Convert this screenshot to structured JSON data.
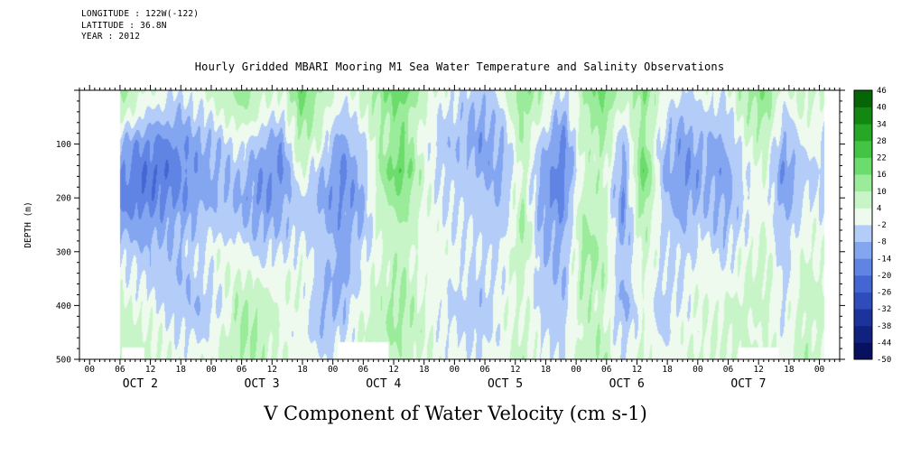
{
  "header": {
    "longitude": "LONGITUDE : 122W(-122)",
    "latitude": "LATITUDE : 36.8N",
    "year": "YEAR : 2012"
  },
  "title": "Hourly Gridded MBARI Mooring M1 Sea Water Temperature and Salinity Observations",
  "caption": "V Component of Water Velocity (cm s-1)",
  "chart_data": {
    "type": "heatmap",
    "title": "Hourly Gridded MBARI Mooring M1 Sea Water Temperature and Salinity Observations",
    "variable": "V Component of Water Velocity (cm s-1)",
    "x_axis": {
      "hours_min": -2,
      "hours_max": 148,
      "major_step": 6,
      "minor_step": 1,
      "label_hours_max": 144,
      "hour_label_cycle": [
        "00",
        "06",
        "12",
        "18"
      ],
      "day_labels": [
        "OCT 2",
        "OCT 3",
        "OCT 4",
        "OCT 5",
        "OCT 6",
        "OCT 7"
      ],
      "day_center_hours": [
        10,
        34,
        58,
        82,
        106,
        130
      ]
    },
    "y_axis": {
      "label": "DEPTH (m)",
      "depth_min": 0,
      "depth_max": 500,
      "major_step": 100,
      "minor_step": 20,
      "tick_labels": [
        100,
        200,
        300,
        400,
        500
      ]
    },
    "colorbar": {
      "min": -50,
      "max": 46,
      "step": 6,
      "boundary_labels": [
        46,
        40,
        34,
        28,
        22,
        16,
        10,
        4,
        -2,
        -8,
        -14,
        -20,
        -26,
        -32,
        -38,
        -44,
        -50
      ],
      "colors": [
        "#081060",
        "#10217e",
        "#1c339c",
        "#2e4cba",
        "#4466d2",
        "#6084e4",
        "#84a6f0",
        "#b3cdf8",
        "#eefaee",
        "#c8f5c8",
        "#9aeb9a",
        "#6cdc6c",
        "#44c444",
        "#26a826",
        "#128812",
        "#066606"
      ]
    },
    "grid": {
      "units": "cm s-1",
      "hour_start": 6,
      "hour_end": 145,
      "depths": [
        0,
        50,
        100,
        150,
        200,
        250,
        300,
        350,
        400,
        450,
        500
      ],
      "values": [
        [
          12,
          6,
          2,
          -2,
          4,
          8,
          14,
          8,
          4,
          20,
          10,
          2,
          6,
          14,
          22,
          8,
          2,
          -2,
          -6,
          2,
          16,
          8,
          -4,
          10,
          20,
          6,
          16,
          4,
          -2,
          2,
          0,
          10,
          16,
          2,
          8,
          4
        ],
        [
          6,
          -2,
          -6,
          -8,
          -4,
          2,
          8,
          2,
          -4,
          14,
          6,
          -6,
          2,
          10,
          14,
          4,
          -2,
          -6,
          -10,
          -4,
          12,
          2,
          -10,
          8,
          14,
          0,
          12,
          -2,
          -8,
          -4,
          -6,
          6,
          12,
          -4,
          4,
          0
        ],
        [
          -8,
          -14,
          -16,
          -14,
          -10,
          -6,
          0,
          -8,
          -12,
          10,
          2,
          -12,
          -4,
          8,
          16,
          2,
          -6,
          -8,
          -12,
          -8,
          10,
          -6,
          -16,
          6,
          10,
          -8,
          14,
          -6,
          -12,
          -8,
          -10,
          2,
          8,
          -10,
          0,
          -2
        ],
        [
          -14,
          -18,
          -20,
          -16,
          -12,
          -8,
          -6,
          -12,
          -16,
          4,
          -6,
          -16,
          -8,
          12,
          22,
          6,
          -4,
          -6,
          -10,
          -10,
          6,
          -10,
          -18,
          4,
          8,
          -12,
          22,
          -8,
          -14,
          -10,
          -12,
          -2,
          4,
          -14,
          -4,
          -4
        ],
        [
          -16,
          -18,
          -16,
          -14,
          -10,
          -8,
          -10,
          -14,
          -12,
          -2,
          -10,
          -14,
          -10,
          10,
          14,
          4,
          -2,
          -4,
          -6,
          -8,
          8,
          -12,
          -16,
          8,
          6,
          -14,
          16,
          -6,
          -12,
          -8,
          -10,
          -4,
          2,
          -12,
          -2,
          -2
        ],
        [
          -10,
          -12,
          -10,
          -8,
          -6,
          -4,
          -6,
          -10,
          -8,
          -4,
          -8,
          -12,
          -8,
          6,
          10,
          2,
          0,
          -2,
          -4,
          -6,
          12,
          -10,
          -12,
          10,
          8,
          -12,
          10,
          -4,
          -8,
          -4,
          -8,
          -2,
          4,
          -8,
          2,
          0
        ],
        [
          -4,
          -6,
          -8,
          -6,
          -2,
          2,
          0,
          -4,
          -2,
          0,
          -4,
          -10,
          -4,
          4,
          8,
          0,
          2,
          0,
          -2,
          -2,
          10,
          -8,
          -10,
          12,
          10,
          -10,
          6,
          -2,
          -4,
          0,
          -4,
          2,
          6,
          -6,
          4,
          2
        ],
        [
          2,
          -2,
          -6,
          -8,
          -4,
          2,
          6,
          2,
          2,
          4,
          -6,
          -12,
          -2,
          6,
          10,
          2,
          0,
          -2,
          -4,
          0,
          6,
          -6,
          -8,
          10,
          8,
          -8,
          4,
          -4,
          -2,
          2,
          0,
          4,
          8,
          -4,
          6,
          4
        ],
        [
          6,
          2,
          -2,
          -6,
          -8,
          -2,
          10,
          8,
          4,
          2,
          -8,
          -8,
          2,
          8,
          12,
          4,
          -2,
          -4,
          -6,
          2,
          4,
          -4,
          -6,
          8,
          6,
          -10,
          2,
          -6,
          0,
          4,
          4,
          6,
          6,
          -2,
          8,
          6
        ],
        [
          8,
          6,
          2,
          -2,
          -4,
          2,
          12,
          10,
          2,
          -2,
          -6,
          -4,
          4,
          10,
          10,
          6,
          0,
          -2,
          -4,
          0,
          6,
          -2,
          -4,
          6,
          8,
          -6,
          4,
          -4,
          2,
          2,
          6,
          4,
          4,
          0,
          6,
          4
        ],
        [
          10,
          8,
          4,
          2,
          2,
          6,
          10,
          8,
          4,
          2,
          -2,
          0,
          6,
          8,
          8,
          4,
          2,
          0,
          -2,
          2,
          8,
          0,
          -2,
          8,
          10,
          -2,
          6,
          0,
          4,
          4,
          4,
          6,
          6,
          2,
          8,
          6
        ]
      ],
      "missing": [
        {
          "h0": 6.4,
          "h1": 10.8,
          "d0": 478,
          "d1": 500
        },
        {
          "h0": 49,
          "h1": 59,
          "d0": 468,
          "d1": 500
        },
        {
          "h0": 128,
          "h1": 136,
          "d0": 478,
          "d1": 500
        }
      ]
    }
  }
}
